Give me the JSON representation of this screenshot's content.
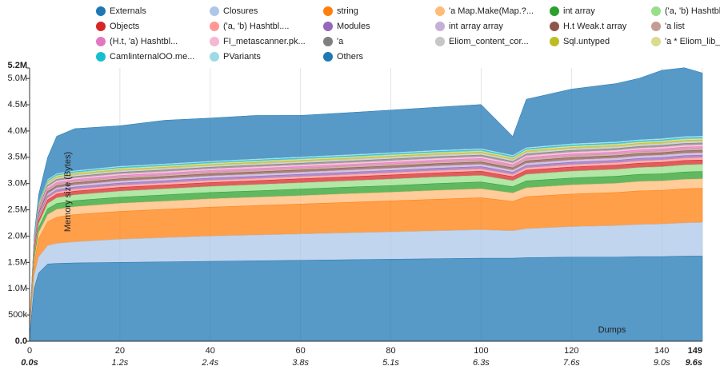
{
  "chart_data": {
    "type": "stacked_area",
    "xlabel": "Dumps",
    "ylabel": "Memory size (Bytes)",
    "x": [
      0,
      1,
      2,
      4,
      6,
      10,
      20,
      30,
      40,
      50,
      60,
      70,
      80,
      90,
      100,
      107,
      110,
      120,
      130,
      135,
      140,
      145,
      149
    ],
    "xlim": [
      0,
      149
    ],
    "xticks": [
      0,
      20,
      40,
      60,
      80,
      100,
      120,
      140,
      149
    ],
    "time_labels": [
      "0.0s",
      "1.2s",
      "2.4s",
      "3.8s",
      "5.1s",
      "6.3s",
      "7.6s",
      "9.0s",
      "9.6s"
    ],
    "ylim": [
      0,
      5200000
    ],
    "yticks": [
      {
        "value": 0,
        "label": "0.0"
      },
      {
        "value": 500000,
        "label": "500k"
      },
      {
        "value": 1000000,
        "label": "1.0M"
      },
      {
        "value": 1500000,
        "label": "1.5M"
      },
      {
        "value": 2000000,
        "label": "2.0M"
      },
      {
        "value": 2500000,
        "label": "2.5M"
      },
      {
        "value": 3000000,
        "label": "3.0M"
      },
      {
        "value": 3500000,
        "label": "3.5M"
      },
      {
        "value": 4000000,
        "label": "4.0M"
      },
      {
        "value": 4500000,
        "label": "4.5M"
      },
      {
        "value": 5000000,
        "label": "5.0M"
      },
      {
        "value": 5200000,
        "label": "5.2M"
      }
    ],
    "grid": true,
    "series": [
      {
        "name": "Externals",
        "color": "#1f77b4",
        "values": [
          100000,
          1000000,
          1300000,
          1470000,
          1480000,
          1490000,
          1500000,
          1510000,
          1520000,
          1530000,
          1540000,
          1550000,
          1560000,
          1570000,
          1580000,
          1580000,
          1590000,
          1600000,
          1600000,
          1610000,
          1610000,
          1620000,
          1620000
        ]
      },
      {
        "name": "Closures",
        "color": "#aec7e8",
        "values": [
          50000,
          250000,
          300000,
          350000,
          380000,
          400000,
          440000,
          460000,
          480000,
          490000,
          500000,
          510000,
          520000,
          530000,
          540000,
          520000,
          550000,
          580000,
          600000,
          610000,
          620000,
          630000,
          640000
        ]
      },
      {
        "name": "string",
        "color": "#ff7f0e",
        "values": [
          40000,
          200000,
          350000,
          450000,
          500000,
          520000,
          530000,
          540000,
          550000,
          560000,
          570000,
          580000,
          590000,
          600000,
          610000,
          560000,
          610000,
          620000,
          630000,
          640000,
          640000,
          650000,
          650000
        ]
      },
      {
        "name": "'a Map.Make(Map.?...",
        "color": "#ffbb78",
        "values": [
          20000,
          80000,
          120000,
          140000,
          150000,
          150000,
          155000,
          155000,
          160000,
          160000,
          160000,
          165000,
          165000,
          170000,
          170000,
          160000,
          170000,
          175000,
          175000,
          180000,
          180000,
          180000,
          180000
        ]
      },
      {
        "name": "int array",
        "color": "#2ca02c",
        "values": [
          10000,
          60000,
          90000,
          110000,
          110000,
          115000,
          115000,
          120000,
          120000,
          120000,
          125000,
          125000,
          125000,
          130000,
          130000,
          120000,
          130000,
          130000,
          135000,
          135000,
          135000,
          140000,
          140000
        ]
      },
      {
        "name": "('a, 'b) Hashtbl....",
        "color": "#98df8a",
        "values": [
          10000,
          60000,
          80000,
          100000,
          110000,
          110000,
          115000,
          115000,
          115000,
          120000,
          120000,
          120000,
          125000,
          125000,
          125000,
          115000,
          125000,
          130000,
          130000,
          130000,
          135000,
          135000,
          135000
        ]
      },
      {
        "name": "Objects",
        "color": "#d62728",
        "values": [
          5000,
          40000,
          60000,
          70000,
          70000,
          70000,
          72000,
          72000,
          74000,
          74000,
          76000,
          76000,
          78000,
          78000,
          80000,
          76000,
          80000,
          80000,
          82000,
          82000,
          84000,
          84000,
          84000
        ]
      },
      {
        "name": "('a, 'b) Hashtbl....",
        "color": "#ff9896",
        "values": [
          5000,
          25000,
          35000,
          40000,
          40000,
          40000,
          41000,
          41000,
          42000,
          42000,
          42000,
          43000,
          43000,
          44000,
          44000,
          42000,
          44000,
          45000,
          45000,
          46000,
          46000,
          46000,
          46000
        ]
      },
      {
        "name": "Modules",
        "color": "#9467bd",
        "values": [
          5000,
          25000,
          35000,
          40000,
          40000,
          40000,
          41000,
          41000,
          42000,
          42000,
          42000,
          43000,
          43000,
          44000,
          44000,
          42000,
          44000,
          45000,
          45000,
          46000,
          46000,
          46000,
          46000
        ]
      },
      {
        "name": "int array array",
        "color": "#c5b0d5",
        "values": [
          5000,
          25000,
          35000,
          40000,
          40000,
          40000,
          41000,
          41000,
          42000,
          42000,
          42000,
          43000,
          43000,
          44000,
          44000,
          42000,
          44000,
          45000,
          45000,
          46000,
          46000,
          46000,
          46000
        ]
      },
      {
        "name": "H.t Weak.t array",
        "color": "#8c564b",
        "values": [
          5000,
          25000,
          35000,
          40000,
          40000,
          40000,
          41000,
          41000,
          42000,
          42000,
          42000,
          43000,
          43000,
          44000,
          44000,
          42000,
          44000,
          45000,
          45000,
          46000,
          46000,
          46000,
          46000
        ]
      },
      {
        "name": "'a list",
        "color": "#c49c94",
        "values": [
          3000,
          18000,
          26000,
          30000,
          30000,
          30000,
          31000,
          31000,
          31000,
          32000,
          32000,
          32000,
          33000,
          33000,
          33000,
          31000,
          33000,
          34000,
          34000,
          34000,
          35000,
          35000,
          35000
        ]
      },
      {
        "name": "(H.t, 'a) Hashtbl...",
        "color": "#e377c2",
        "values": [
          3000,
          18000,
          26000,
          30000,
          30000,
          30000,
          31000,
          31000,
          31000,
          32000,
          32000,
          32000,
          33000,
          33000,
          33000,
          31000,
          33000,
          34000,
          34000,
          34000,
          35000,
          35000,
          35000
        ]
      },
      {
        "name": "FI_metascanner.pk...",
        "color": "#f7b6d2",
        "values": [
          3000,
          18000,
          26000,
          30000,
          30000,
          30000,
          31000,
          31000,
          31000,
          32000,
          32000,
          32000,
          33000,
          33000,
          33000,
          31000,
          33000,
          34000,
          34000,
          34000,
          35000,
          35000,
          35000
        ]
      },
      {
        "name": "'a",
        "color": "#7f7f7f",
        "values": [
          3000,
          18000,
          26000,
          30000,
          30000,
          30000,
          31000,
          31000,
          31000,
          32000,
          32000,
          32000,
          33000,
          33000,
          33000,
          31000,
          33000,
          34000,
          34000,
          34000,
          35000,
          35000,
          35000
        ]
      },
      {
        "name": "Eliom_content_cor...",
        "color": "#c7c7c7",
        "values": [
          3000,
          18000,
          26000,
          30000,
          30000,
          30000,
          31000,
          31000,
          31000,
          32000,
          32000,
          32000,
          33000,
          33000,
          33000,
          31000,
          33000,
          34000,
          34000,
          34000,
          35000,
          35000,
          35000
        ]
      },
      {
        "name": "Sql.untyped",
        "color": "#bcbd22",
        "values": [
          2000,
          12000,
          17000,
          20000,
          20000,
          20000,
          21000,
          21000,
          21000,
          21000,
          22000,
          22000,
          22000,
          22000,
          22000,
          21000,
          22000,
          23000,
          23000,
          23000,
          23000,
          24000,
          24000
        ]
      },
      {
        "name": "'a * Eliom_lib_ba...",
        "color": "#dbdb8d",
        "values": [
          2000,
          12000,
          17000,
          20000,
          20000,
          20000,
          21000,
          21000,
          21000,
          21000,
          22000,
          22000,
          22000,
          22000,
          22000,
          21000,
          22000,
          23000,
          23000,
          23000,
          23000,
          24000,
          24000
        ]
      },
      {
        "name": "CamlinternalOO.me...",
        "color": "#17becf",
        "values": [
          2000,
          12000,
          17000,
          20000,
          20000,
          20000,
          21000,
          21000,
          21000,
          21000,
          22000,
          22000,
          22000,
          22000,
          22000,
          21000,
          22000,
          23000,
          23000,
          23000,
          23000,
          24000,
          24000
        ]
      },
      {
        "name": "PVariants",
        "color": "#9edae5",
        "values": [
          2000,
          12000,
          17000,
          20000,
          20000,
          20000,
          21000,
          21000,
          21000,
          21000,
          22000,
          22000,
          22000,
          22000,
          22000,
          21000,
          22000,
          23000,
          23000,
          23000,
          23000,
          24000,
          24000
        ]
      },
      {
        "name": "Others",
        "color": "#1f77b4",
        "values": [
          20000,
          80000,
          150000,
          420000,
          710000,
          800000,
          770000,
          830000,
          820000,
          830000,
          790000,
          800000,
          810000,
          820000,
          840000,
          360000,
          920000,
          1040000,
          1110000,
          1170000,
          1300000,
          1310000,
          1200000
        ]
      }
    ]
  }
}
